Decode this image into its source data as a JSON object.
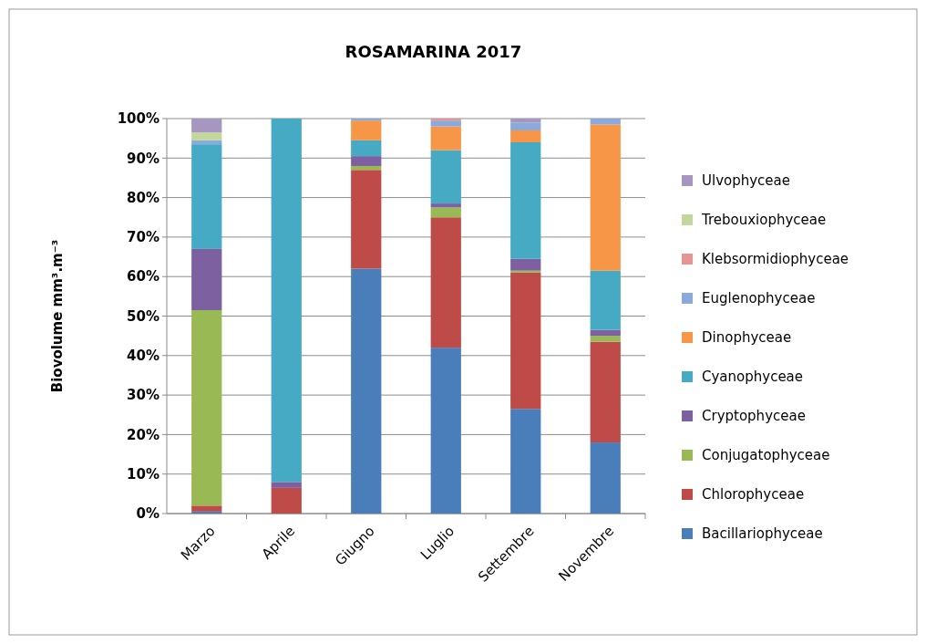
{
  "chart_data": {
    "type": "bar",
    "title": "ROSAMARINA 2017",
    "ylabel": "Biovolume mm³.m⁻³",
    "stacked": true,
    "grid": "y",
    "legend": "right",
    "categories": [
      "Marzo",
      "Aprile",
      "Giugno",
      "Luglio",
      "Settembre",
      "Novembre"
    ],
    "ylim": [
      0,
      100
    ],
    "yticks": [
      {
        "value": 0,
        "label": "0%"
      },
      {
        "value": 10,
        "label": "10%"
      },
      {
        "value": 20,
        "label": "20%"
      },
      {
        "value": 30,
        "label": "30%"
      },
      {
        "value": 40,
        "label": "40%"
      },
      {
        "value": 50,
        "label": "50%"
      },
      {
        "value": 60,
        "label": "60%"
      },
      {
        "value": 70,
        "label": "70%"
      },
      {
        "value": 80,
        "label": "80%"
      },
      {
        "value": 90,
        "label": "90%"
      },
      {
        "value": 100,
        "label": "100%"
      }
    ],
    "series": [
      {
        "name": "Bacillariophyceae",
        "color": "#4a7ebb",
        "values": [
          0.5,
          0,
          62,
          42,
          26.5,
          18
        ]
      },
      {
        "name": "Chlorophyceae",
        "color": "#be4b48",
        "values": [
          1.5,
          6.5,
          25,
          33,
          34.5,
          25.5
        ]
      },
      {
        "name": "Conjugatophyceae",
        "color": "#98b954",
        "values": [
          49.5,
          0,
          1,
          2.5,
          0.5,
          1.5
        ]
      },
      {
        "name": "Cryptophyceae",
        "color": "#7d60a0",
        "values": [
          15.5,
          1.5,
          2.5,
          1,
          3,
          1.5
        ]
      },
      {
        "name": "Cyanophyceae",
        "color": "#46aac5",
        "values": [
          26.5,
          92,
          4,
          13.5,
          29.5,
          15
        ]
      },
      {
        "name": "Dinophyceae",
        "color": "#f79646",
        "values": [
          0,
          0,
          5,
          6,
          3,
          37
        ]
      },
      {
        "name": "Euglenophyceae",
        "color": "#8ca9db",
        "values": [
          1,
          0,
          0.5,
          1.5,
          2,
          1.5
        ]
      },
      {
        "name": "Klebsormidiophyceae",
        "color": "#e39694",
        "values": [
          0,
          0,
          0,
          0.5,
          0,
          0
        ]
      },
      {
        "name": "Trebouxiophyceae",
        "color": "#c3d69b",
        "values": [
          2,
          0,
          0,
          0,
          0,
          0
        ]
      },
      {
        "name": "Ulvophyceae",
        "color": "#a597c0",
        "values": [
          3.5,
          0,
          0,
          0,
          1,
          0
        ]
      }
    ]
  }
}
